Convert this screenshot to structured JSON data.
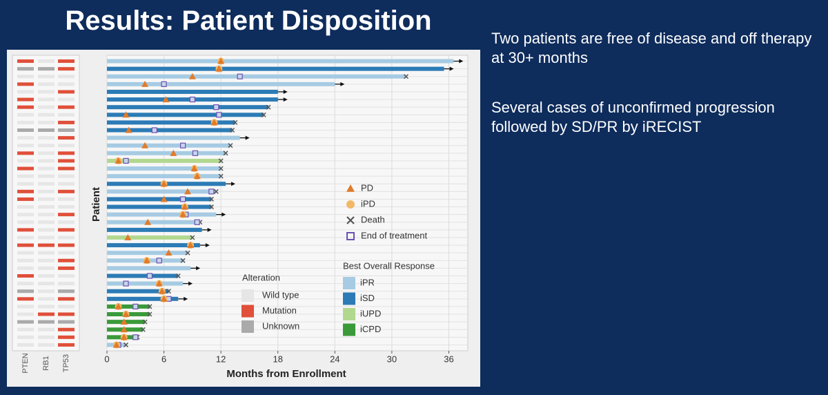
{
  "title": "Results: Patient Disposition",
  "notes": [
    "Two patients are free of disease and off therapy at 30+ months",
    "Several cases of unconfirmed progression followed by SD/PR by iRECIST"
  ],
  "chart_data": {
    "type": "swimmer",
    "xlabel": "Months from Enrollment",
    "ylabel": "Patient",
    "xlim": [
      0,
      38
    ],
    "xticks": [
      0,
      6,
      12,
      18,
      24,
      30,
      36
    ],
    "grid": true,
    "genes": [
      "PTEN",
      "RB1",
      "TP53"
    ],
    "markers": {
      "title": null,
      "items": [
        {
          "name": "PD",
          "color": "#e07b2a"
        },
        {
          "name": "iPD",
          "color": "#f2b866"
        },
        {
          "name": "Death",
          "color": "#555555"
        },
        {
          "name": "End of treatment",
          "color": "#6a4fb0"
        }
      ]
    },
    "responses": {
      "title": "Best Overall Response",
      "items": [
        {
          "name": "iPR",
          "color": "#a6cbe3"
        },
        {
          "name": "iSD",
          "color": "#2c7bb6"
        },
        {
          "name": "iUPD",
          "color": "#b2d88f"
        },
        {
          "name": "iCPD",
          "color": "#3a9a3a"
        }
      ]
    },
    "alterations": {
      "title": "Alteration",
      "items": [
        {
          "name": "Wild type",
          "color": "#e6e6e6"
        },
        {
          "name": "Mutation",
          "color": "#e0503a"
        },
        {
          "name": "Unknown",
          "color": "#aaaaaa"
        }
      ]
    },
    "patients": [
      {
        "months": 36.5,
        "response": "iPR",
        "ipd": 12,
        "pd": 12,
        "ongoing": true,
        "alteration": [
          "Mutation",
          "Wild type",
          "Mutation"
        ]
      },
      {
        "months": 35.5,
        "response": "iSD",
        "ipd": 11.8,
        "pd": 11.8,
        "ongoing": true,
        "alteration": [
          "Unknown",
          "Unknown",
          "Mutation"
        ]
      },
      {
        "months": 31.5,
        "response": "iPR",
        "pd": 9,
        "eot": 14,
        "death": true,
        "alteration": [
          "Wild type",
          "Wild type",
          "Wild type"
        ]
      },
      {
        "months": 24,
        "response": "iPR",
        "pd": 4,
        "eot": 6,
        "ongoing": true,
        "alteration": [
          "Mutation",
          "Wild type",
          "Wild type"
        ]
      },
      {
        "months": 18,
        "response": "iSD",
        "ongoing": true,
        "alteration": [
          "Wild type",
          "Wild type",
          "Mutation"
        ]
      },
      {
        "months": 18,
        "response": "iSD",
        "pd": 6.2,
        "eot": 9,
        "ongoing": true,
        "alteration": [
          "Mutation",
          "Wild type",
          "Wild type"
        ]
      },
      {
        "months": 17,
        "response": "iSD",
        "eot": 11.5,
        "death": true,
        "alteration": [
          "Mutation",
          "Wild type",
          "Mutation"
        ]
      },
      {
        "months": 16.5,
        "response": "iSD",
        "pd": 2,
        "eot": 11.8,
        "death": true,
        "alteration": [
          "Wild type",
          "Wild type",
          "Wild type"
        ]
      },
      {
        "months": 13.5,
        "response": "iSD",
        "ipd": 11.3,
        "pd": 11.3,
        "death": true,
        "alteration": [
          "Wild type",
          "Wild type",
          "Mutation"
        ]
      },
      {
        "months": 13.2,
        "response": "iSD",
        "pd": 2.3,
        "eot": 5,
        "death": true,
        "alteration": [
          "Unknown",
          "Unknown",
          "Unknown"
        ]
      },
      {
        "months": 14,
        "response": "iPR",
        "ongoing": true,
        "alteration": [
          "Wild type",
          "Wild type",
          "Mutation"
        ]
      },
      {
        "months": 13,
        "response": "iPR",
        "pd": 4,
        "eot": 8,
        "death": true,
        "alteration": [
          "Wild type",
          "Wild type",
          "Wild type"
        ]
      },
      {
        "months": 12.5,
        "response": "iPR",
        "pd": 7,
        "eot": 9.3,
        "death": true,
        "alteration": [
          "Mutation",
          "Wild type",
          "Mutation"
        ]
      },
      {
        "months": 12,
        "response": "iUPD",
        "ipd": 1.2,
        "pd": 1.2,
        "eot": 2,
        "death": true,
        "alteration": [
          "Wild type",
          "Wild type",
          "Mutation"
        ]
      },
      {
        "months": 12,
        "response": "iPR",
        "ipd": 9.2,
        "pd": 9.2,
        "death": true,
        "alteration": [
          "Mutation",
          "Wild type",
          "Mutation"
        ]
      },
      {
        "months": 12,
        "response": "iPR",
        "ipd": 9.5,
        "pd": 9.5,
        "death": true,
        "alteration": [
          "Wild type",
          "Wild type",
          "Wild type"
        ]
      },
      {
        "months": 12.5,
        "response": "iSD",
        "ipd": 6,
        "pd": 6,
        "ongoing": true,
        "alteration": [
          "Wild type",
          "Wild type",
          "Wild type"
        ]
      },
      {
        "months": 11.5,
        "response": "iPR",
        "pd": 8.5,
        "eot": 11,
        "death": true,
        "alteration": [
          "Mutation",
          "Wild type",
          "Mutation"
        ]
      },
      {
        "months": 11,
        "response": "iSD",
        "pd": 6,
        "eot": 8,
        "death": true,
        "alteration": [
          "Mutation",
          "Wild type",
          "Wild type"
        ]
      },
      {
        "months": 11,
        "response": "iSD",
        "ipd": 8.2,
        "pd": 8.2,
        "death": true,
        "alteration": [
          "Wild type",
          "Wild type",
          "Wild type"
        ]
      },
      {
        "months": 11.5,
        "response": "iPR",
        "ipd": 8,
        "pd": 8,
        "eot": 8.3,
        "ongoing": true,
        "alteration": [
          "Wild type",
          "Wild type",
          "Mutation"
        ]
      },
      {
        "months": 9.8,
        "response": "iPR",
        "pd": 4.3,
        "eot": 9.5,
        "death": true,
        "alteration": [
          "Wild type",
          "Wild type",
          "Wild type"
        ]
      },
      {
        "months": 10,
        "response": "iSD",
        "ongoing": true,
        "alteration": [
          "Mutation",
          "Wild type",
          "Mutation"
        ]
      },
      {
        "months": 9,
        "response": "iUPD",
        "pd": 2.2,
        "death": true,
        "alteration": [
          "Wild type",
          "Wild type",
          "Wild type"
        ]
      },
      {
        "months": 9.8,
        "response": "iSD",
        "ipd": 8.8,
        "pd": 8.8,
        "ongoing": true,
        "alteration": [
          "Mutation",
          "Mutation",
          "Mutation"
        ]
      },
      {
        "months": 8.5,
        "response": "iPR",
        "pd": 6.5,
        "death": true,
        "alteration": [
          "Wild type",
          "Wild type",
          "Wild type"
        ]
      },
      {
        "months": 8,
        "response": "iPR",
        "ipd": 4.2,
        "pd": 4.2,
        "eot": 5.5,
        "death": true,
        "alteration": [
          "Wild type",
          "Wild type",
          "Mutation"
        ]
      },
      {
        "months": 8.8,
        "response": "iPR",
        "ongoing": true,
        "alteration": [
          "Wild type",
          "Wild type",
          "Mutation"
        ]
      },
      {
        "months": 7.5,
        "response": "iSD",
        "eot": 4.5,
        "death": true,
        "alteration": [
          "Mutation",
          "Wild type",
          "Wild type"
        ]
      },
      {
        "months": 8,
        "response": "iPR",
        "ipd": 5.5,
        "pd": 5.5,
        "eot": 2,
        "ongoing": true,
        "alteration": [
          "Wild type",
          "Wild type",
          "Wild type"
        ]
      },
      {
        "months": 6.5,
        "response": "iSD",
        "ipd": 5.8,
        "pd": 5.8,
        "death": true,
        "alteration": [
          "Unknown",
          "Wild type",
          "Unknown"
        ]
      },
      {
        "months": 7.5,
        "response": "iSD",
        "ipd": 6,
        "pd": 6,
        "eot": 6.5,
        "ongoing": true,
        "alteration": [
          "Mutation",
          "Wild type",
          "Mutation"
        ]
      },
      {
        "months": 4.5,
        "response": "iCPD",
        "ipd": 1.2,
        "pd": 1.2,
        "eot": 3,
        "death": true,
        "alteration": [
          "Wild type",
          "Wild type",
          "Wild type"
        ]
      },
      {
        "months": 4.5,
        "response": "iCPD",
        "ipd": 2,
        "pd": 2,
        "death": true,
        "alteration": [
          "Wild type",
          "Mutation",
          "Mutation"
        ]
      },
      {
        "months": 4,
        "response": "iCPD",
        "pd": 1.8,
        "death": true,
        "alteration": [
          "Unknown",
          "Unknown",
          "Unknown"
        ]
      },
      {
        "months": 3.8,
        "response": "iCPD",
        "pd": 1.8,
        "death": true,
        "alteration": [
          "Wild type",
          "Wild type",
          "Mutation"
        ]
      },
      {
        "months": 3.2,
        "response": "iCPD",
        "ipd": 1.8,
        "pd": 1.8,
        "eot": 3,
        "death": true,
        "alteration": [
          "Wild type",
          "Wild type",
          "Mutation"
        ]
      },
      {
        "months": 2,
        "response": "iPR",
        "ipd": 1,
        "pd": 1,
        "eot": 1.2,
        "death": true,
        "alteration": [
          "Wild type",
          "Wild type",
          "Mutation"
        ]
      }
    ]
  }
}
